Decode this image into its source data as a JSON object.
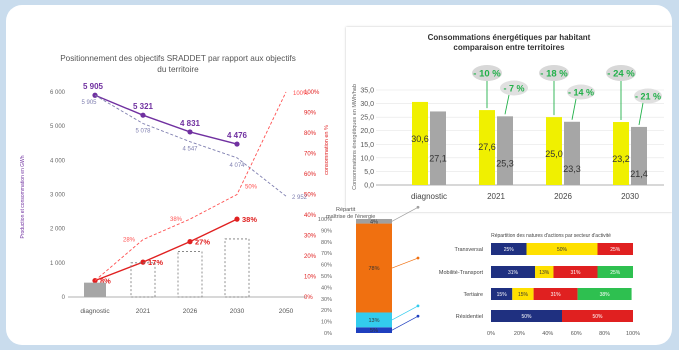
{
  "chart_data": [
    {
      "type": "line",
      "title": "Positionnement des objectifs SRADDET par rapport aux objectifs du territoire",
      "ylabel": "Production et consommation en GWh",
      "y2label": "consommation en %",
      "categories": [
        "diagnostic",
        "2021",
        "2026",
        "2030",
        "2050"
      ],
      "ylim": [
        0,
        6000
      ],
      "yticks": [
        "0",
        "1 000",
        "2 000",
        "3 000",
        "4 000",
        "5 000",
        "6 000"
      ],
      "y2lim": [
        0,
        100
      ],
      "y2ticks": [
        "0%",
        "10%",
        "20%",
        "30%",
        "40%",
        "50%",
        "60%",
        "70%",
        "80%",
        "90%",
        "100%"
      ],
      "series": [
        {
          "kind": "line",
          "color": "#7030a0",
          "values": [
            5905,
            5321,
            4831,
            4476,
            null
          ],
          "labels": [
            "5 905",
            "5 321",
            "4 831",
            "4 476",
            ""
          ]
        },
        {
          "kind": "dashed",
          "color": "#7f7fb0",
          "values": [
            5905,
            5078,
            4547,
            4074,
            2952
          ],
          "labels": [
            "5 905",
            "5 078",
            "4 547",
            "4 074",
            "2 952"
          ]
        },
        {
          "kind": "line-pct",
          "color": "#e02020",
          "values": [
            8,
            17,
            27,
            38,
            null
          ],
          "labels": [
            "8%",
            "17%",
            "27%",
            "38%",
            ""
          ]
        },
        {
          "kind": "dashed-pct",
          "color": "#ff5050",
          "values": [
            8,
            28,
            38,
            50,
            100
          ],
          "labels": [
            "",
            "28%",
            "38%",
            "50%",
            "100%"
          ]
        },
        {
          "kind": "bars",
          "values": [
            420,
            1000,
            1330,
            1700,
            null
          ]
        }
      ]
    },
    {
      "type": "bar",
      "title": "Consommations énergétiques par habitant",
      "subtitle": "comparaison entre territoires",
      "ylabel": "Consommations énergétiques en MWh/hab",
      "categories": [
        "diagnostic",
        "2021",
        "2026",
        "2030"
      ],
      "ylim": [
        0,
        35
      ],
      "yticks": [
        "0,0",
        "5,0",
        "10,0",
        "15,0",
        "20,0",
        "25,0",
        "30,0",
        "35,0"
      ],
      "series": [
        {
          "color": "#f0f000",
          "values": [
            30.6,
            27.6,
            25.0,
            23.2
          ],
          "labels": [
            "30,6",
            "27,6",
            "25,0",
            "23,2"
          ]
        },
        {
          "color": "#a6a6a6",
          "values": [
            27.1,
            25.3,
            23.3,
            21.4
          ],
          "labels": [
            "27,1",
            "25,3",
            "23,3",
            "21,4"
          ]
        }
      ],
      "green_reductions": [
        "- 10 %",
        "- 18 %",
        "- 24 %"
      ],
      "gray_reductions": [
        "- 7 %",
        "- 14 %",
        "- 21 %"
      ]
    },
    {
      "type": "bar",
      "title": "Répartit",
      "subtitle": "maîtrise de l'énergie",
      "yticks": [
        "0%",
        "10%",
        "20%",
        "30%",
        "40%",
        "50%",
        "60%",
        "70%",
        "80%",
        "90%",
        "100%"
      ],
      "segments": [
        {
          "value": 5,
          "color": "#1f3fbf",
          "label": "5%"
        },
        {
          "value": 13,
          "color": "#33ccee",
          "label": "13%"
        },
        {
          "value": 78,
          "color": "#f07010",
          "label": "78%"
        },
        {
          "value": 4,
          "color": "#a0a0a0",
          "label": "4%"
        }
      ]
    },
    {
      "type": "bar",
      "title": "Répartition des natures d'actions par secteur d'activité",
      "categories": [
        "Transversal",
        "Mobilité-Transport",
        "Tertiaire",
        "Résidentiel"
      ],
      "xticks": [
        "0%",
        "20%",
        "40%",
        "60%",
        "80%",
        "100%"
      ],
      "rows": [
        [
          {
            "value": 25,
            "color": "#1f3080",
            "label": "25%"
          },
          {
            "value": 50,
            "color": "#ffe000",
            "label": "50%"
          },
          {
            "value": 25,
            "color": "#e02020",
            "label": "25%"
          }
        ],
        [
          {
            "value": 31,
            "color": "#1f3080",
            "label": "31%"
          },
          {
            "value": 13,
            "color": "#ffe000",
            "label": "13%"
          },
          {
            "value": 31,
            "color": "#e02020",
            "label": "31%"
          },
          {
            "value": 25,
            "color": "#2ec050",
            "label": "25%"
          }
        ],
        [
          {
            "value": 15,
            "color": "#1f3080",
            "label": "15%"
          },
          {
            "value": 15,
            "color": "#ffe000",
            "label": "15%"
          },
          {
            "value": 31,
            "color": "#e02020",
            "label": "31%"
          },
          {
            "value": 38,
            "color": "#2ec050",
            "label": "38%"
          }
        ],
        [
          {
            "value": 50,
            "color": "#1f3080",
            "label": "50%"
          },
          {
            "value": 50,
            "color": "#e02020",
            "label": "50%"
          }
        ]
      ]
    }
  ]
}
